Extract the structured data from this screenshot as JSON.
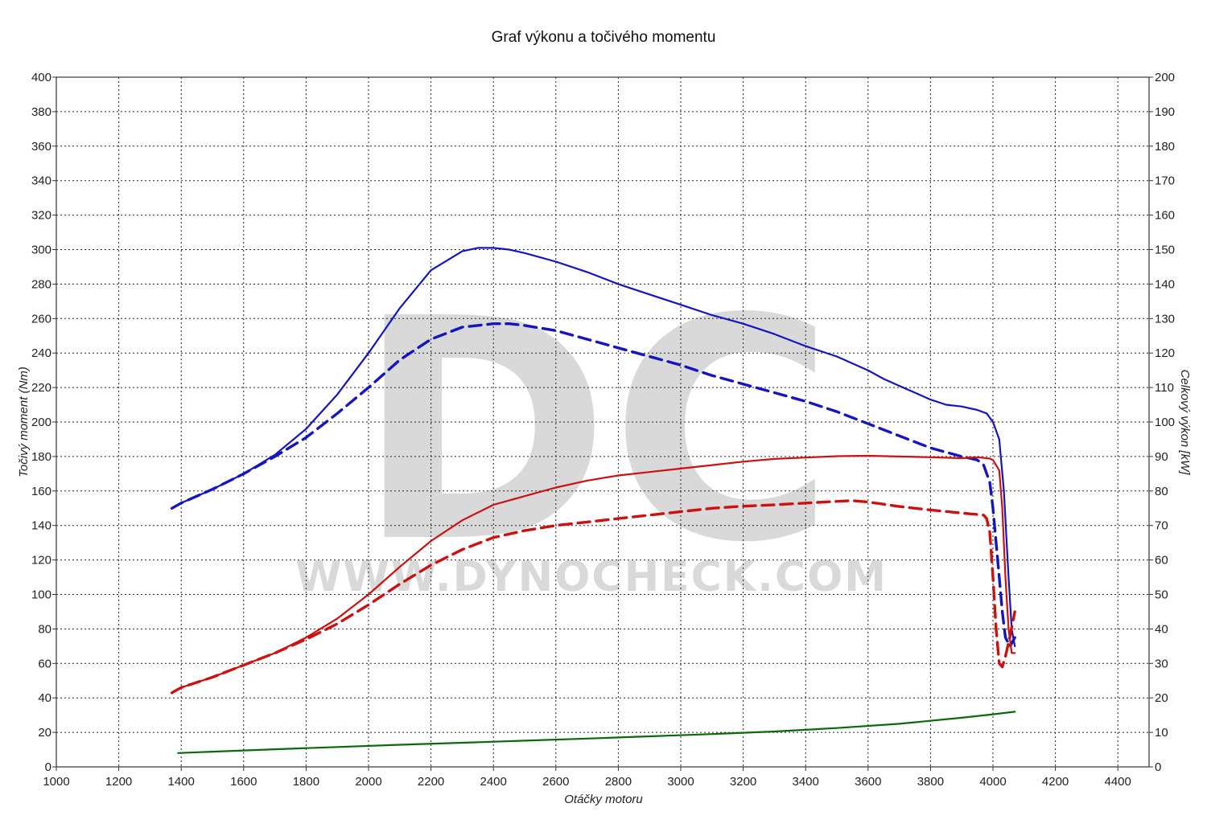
{
  "chart_data": {
    "type": "line",
    "title": "Graf výkonu a točivého momentu",
    "xlabel": "Otáčky motoru",
    "ylabel_left": "Točivý moment (Nm)",
    "ylabel_right": "Celkový výkon [kW]",
    "xlim": [
      1000,
      4500
    ],
    "ylim_left": [
      0,
      400
    ],
    "ylim_right": [
      0,
      200
    ],
    "x_ticks": [
      1000,
      1200,
      1400,
      1600,
      1800,
      2000,
      2200,
      2400,
      2600,
      2800,
      3000,
      3200,
      3400,
      3600,
      3800,
      4000,
      4200,
      4400
    ],
    "y_ticks_left": [
      0,
      20,
      40,
      60,
      80,
      100,
      120,
      140,
      160,
      180,
      200,
      220,
      240,
      260,
      280,
      300,
      320,
      340,
      360,
      380,
      400
    ],
    "y_ticks_right": [
      0,
      10,
      20,
      30,
      40,
      50,
      60,
      70,
      80,
      90,
      100,
      110,
      120,
      130,
      140,
      150,
      160,
      170,
      180,
      190,
      200
    ],
    "grid": true,
    "watermark": {
      "logo": "DC",
      "url": "WWW.DYNOCHECK.COM"
    },
    "series": [
      {
        "axis": "left",
        "color": "#1515c0",
        "dashed": false,
        "x": [
          1370,
          1400,
          1450,
          1500,
          1600,
          1700,
          1800,
          1900,
          2000,
          2100,
          2200,
          2300,
          2350,
          2400,
          2450,
          2500,
          2600,
          2700,
          2800,
          2900,
          3000,
          3100,
          3200,
          3300,
          3400,
          3500,
          3600,
          3650,
          3700,
          3750,
          3800,
          3850,
          3900,
          3950,
          3980,
          4000,
          4020,
          4035,
          4050,
          4060,
          4070
        ],
        "y": [
          150,
          153,
          157,
          161,
          170,
          181,
          196,
          216,
          240,
          266,
          288,
          299,
          301,
          301,
          300,
          298,
          293,
          287,
          280,
          274,
          268,
          262,
          257,
          251,
          244,
          238,
          230,
          225,
          221,
          217,
          213,
          210,
          209,
          207,
          205,
          200,
          190,
          160,
          110,
          80,
          70
        ]
      },
      {
        "axis": "left",
        "color": "#1515c0",
        "dashed": true,
        "x": [
          1370,
          1400,
          1450,
          1500,
          1600,
          1700,
          1800,
          1900,
          2000,
          2100,
          2200,
          2300,
          2400,
          2450,
          2500,
          2600,
          2700,
          2800,
          2900,
          3000,
          3100,
          3200,
          3300,
          3400,
          3500,
          3600,
          3700,
          3800,
          3900,
          3950,
          3970,
          3990,
          4000,
          4010,
          4020,
          4030,
          4040,
          4055,
          4070
        ],
        "y": [
          150,
          153,
          157,
          161,
          170,
          180,
          191,
          205,
          220,
          236,
          248,
          255,
          257,
          257,
          256,
          253,
          248,
          243,
          238,
          233,
          227,
          222,
          217,
          212,
          206,
          199,
          192,
          185,
          180,
          178,
          175,
          165,
          150,
          130,
          110,
          90,
          75,
          70,
          75
        ]
      },
      {
        "axis": "right",
        "color": "#cc1111",
        "dashed": false,
        "x": [
          1370,
          1400,
          1500,
          1600,
          1700,
          1800,
          1900,
          2000,
          2100,
          2200,
          2300,
          2400,
          2500,
          2600,
          2700,
          2800,
          2900,
          3000,
          3100,
          3200,
          3300,
          3400,
          3500,
          3600,
          3700,
          3800,
          3900,
          3950,
          3990,
          4000,
          4020,
          4030,
          4040,
          4050,
          4060,
          4070
        ],
        "y": [
          21.5,
          23,
          26,
          29.5,
          33,
          37.5,
          43,
          50,
          58,
          65.5,
          71.5,
          76,
          78.5,
          81,
          83,
          84.5,
          85.5,
          86.5,
          87.5,
          88.5,
          89.3,
          89.7,
          90.1,
          90.2,
          90,
          89.8,
          89.5,
          89.8,
          89.4,
          89,
          86,
          75,
          55,
          40,
          33,
          33
        ]
      },
      {
        "axis": "right",
        "color": "#cc1111",
        "dashed": true,
        "x": [
          1370,
          1400,
          1500,
          1600,
          1700,
          1800,
          1900,
          2000,
          2100,
          2200,
          2300,
          2400,
          2500,
          2600,
          2700,
          2800,
          2900,
          3000,
          3100,
          3200,
          3300,
          3400,
          3500,
          3550,
          3600,
          3700,
          3800,
          3900,
          3950,
          3970,
          3980,
          3990,
          4000,
          4010,
          4020,
          4030,
          4040,
          4055,
          4070
        ],
        "y": [
          21.5,
          23,
          26,
          29.5,
          33,
          37,
          41.5,
          47,
          53,
          58.5,
          63,
          66.5,
          68.5,
          70,
          71,
          72,
          73,
          74,
          75,
          75.6,
          76,
          76.5,
          77,
          77.2,
          76.8,
          75.5,
          74.5,
          73.6,
          73.2,
          73,
          72,
          68,
          55,
          40,
          30,
          29,
          32,
          38,
          45
        ]
      },
      {
        "axis": "left",
        "color": "#0a6a0a",
        "dashed": false,
        "x": [
          1390,
          1500,
          1700,
          1900,
          2100,
          2300,
          2500,
          2700,
          2900,
          3100,
          3300,
          3500,
          3700,
          3900,
          4000,
          4070
        ],
        "y": [
          8,
          8.8,
          10.2,
          11.5,
          12.8,
          14,
          15.2,
          16.4,
          17.7,
          19,
          20.5,
          22.5,
          25,
          28.5,
          30.5,
          32
        ]
      }
    ]
  }
}
